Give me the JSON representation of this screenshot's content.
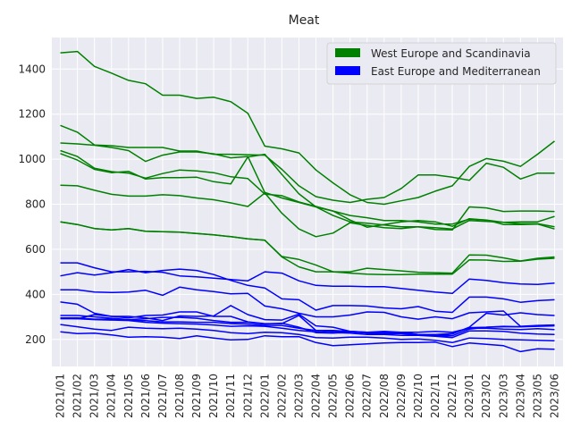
{
  "chart_data": {
    "type": "line",
    "title": "Meat",
    "xlabel": "",
    "ylabel": "",
    "x": [
      "2021/01",
      "2021/02",
      "2021/03",
      "2021/04",
      "2021/05",
      "2021/06",
      "2021/07",
      "2021/08",
      "2021/09",
      "2021/10",
      "2021/11",
      "2021/12",
      "2022/01",
      "2022/02",
      "2022/03",
      "2022/04",
      "2022/05",
      "2022/06",
      "2022/07",
      "2022/08",
      "2022/09",
      "2022/10",
      "2022/11",
      "2022/12",
      "2023/01",
      "2023/02",
      "2023/03",
      "2023/04",
      "2023/05",
      "2023/06"
    ],
    "ylim": [
      80,
      1540
    ],
    "yticks": [
      200,
      400,
      600,
      800,
      1000,
      1200,
      1400
    ],
    "grid": true,
    "legend_position": "top-right",
    "groups": [
      {
        "label": "West Europe and Scandinavia",
        "color": "#008000"
      },
      {
        "label": "East Europe and Mediterranean",
        "color": "#0000ff"
      }
    ],
    "series": [
      {
        "group": 0,
        "values": [
          1472,
          1478,
          1412,
          1382,
          1350,
          1335,
          1284,
          1284,
          1270,
          1275,
          1255,
          1204,
          1058,
          1046,
          1028,
          952,
          895,
          842,
          808,
          800,
          815,
          830,
          858,
          882,
          968,
          1003,
          991,
          968,
          1022,
          1080
        ]
      },
      {
        "group": 0,
        "values": [
          1150,
          1120,
          1063,
          1060,
          1052,
          1052,
          1052,
          1036,
          1036,
          1022,
          1022,
          1020,
          1018,
          955,
          882,
          834,
          818,
          808,
          822,
          830,
          870,
          930,
          930,
          920,
          906,
          982,
          964,
          912,
          938,
          938
        ]
      },
      {
        "group": 0,
        "values": [
          1072,
          1068,
          1062,
          1052,
          1038,
          990,
          1018,
          1032,
          1032,
          1024,
          1006,
          1012,
          852,
          828,
          808,
          788,
          770,
          730,
          698,
          710,
          722,
          728,
          722,
          702,
          736,
          730,
          710,
          710,
          712,
          690
        ]
      },
      {
        "group": 0,
        "values": [
          1038,
          1012,
          960,
          945,
          938,
          916,
          936,
          952,
          948,
          940,
          922,
          914,
          845,
          838,
          810,
          790,
          770,
          750,
          740,
          728,
          728,
          722,
          712,
          712,
          734,
          730,
          720,
          722,
          722,
          746
        ]
      },
      {
        "group": 0,
        "values": [
          1025,
          996,
          955,
          940,
          946,
          912,
          918,
          918,
          920,
          900,
          890,
          1010,
          1022,
          932,
          846,
          788,
          750,
          722,
          716,
          708,
          700,
          700,
          688,
          686,
          788,
          784,
          768,
          770,
          770,
          768
        ]
      },
      {
        "group": 0,
        "values": [
          884,
          882,
          862,
          844,
          836,
          836,
          842,
          838,
          828,
          820,
          806,
          790,
          850,
          760,
          690,
          656,
          672,
          718,
          706,
          696,
          692,
          700,
          696,
          690,
          728,
          724,
          720,
          714,
          714,
          700
        ]
      },
      {
        "group": 0,
        "values": [
          722,
          710,
          692,
          686,
          692,
          680,
          678,
          676,
          670,
          664,
          656,
          646,
          640,
          566,
          522,
          500,
          500,
          494,
          490,
          488,
          488,
          490,
          490,
          490,
          553,
          552,
          546,
          547,
          556,
          560
        ]
      },
      {
        "group": 0,
        "values": [
          722,
          710,
          692,
          686,
          692,
          680,
          678,
          676,
          670,
          664,
          656,
          646,
          640,
          568,
          555,
          530,
          500,
          500,
          516,
          510,
          504,
          498,
          496,
          494,
          575,
          574,
          562,
          548,
          560,
          566
        ]
      },
      {
        "group": 1,
        "values": [
          540,
          540,
          518,
          500,
          500,
          502,
          498,
          482,
          478,
          472,
          466,
          460,
          500,
          494,
          460,
          440,
          436,
          436,
          434,
          434,
          426,
          418,
          410,
          404,
          468,
          462,
          452,
          446,
          444,
          450
        ]
      },
      {
        "group": 1,
        "values": [
          482,
          496,
          486,
          496,
          510,
          496,
          506,
          512,
          506,
          488,
          462,
          440,
          428,
          380,
          376,
          330,
          350,
          350,
          348,
          340,
          336,
          346,
          325,
          320,
          388,
          388,
          380,
          365,
          372,
          376
        ]
      },
      {
        "group": 1,
        "values": [
          420,
          420,
          410,
          408,
          410,
          418,
          396,
          432,
          420,
          412,
          402,
          404,
          348,
          336,
          316,
          300,
          300,
          308,
          322,
          320,
          300,
          290,
          300,
          292,
          318,
          322,
          326,
          258,
          262,
          264
        ]
      },
      {
        "group": 1,
        "values": [
          366,
          356,
          316,
          302,
          296,
          306,
          308,
          322,
          322,
          302,
          302,
          278,
          270,
          270,
          306,
          240,
          240,
          236,
          232,
          228,
          232,
          232,
          236,
          232,
          250,
          250,
          246,
          244,
          248,
          244
        ]
      },
      {
        "group": 1,
        "values": [
          306,
          306,
          300,
          294,
          288,
          292,
          298,
          298,
          294,
          284,
          276,
          276,
          268,
          272,
          254,
          230,
          228,
          234,
          230,
          232,
          226,
          222,
          222,
          226,
          252,
          254,
          258,
          256,
          258,
          260
        ]
      },
      {
        "group": 1,
        "values": [
          295,
          296,
          290,
          290,
          285,
          283,
          278,
          278,
          276,
          276,
          270,
          268,
          262,
          262,
          250,
          240,
          236,
          234,
          228,
          226,
          226,
          222,
          216,
          216,
          246,
          254,
          256,
          256,
          260,
          264
        ]
      },
      {
        "group": 1,
        "values": [
          292,
          292,
          288,
          286,
          284,
          276,
          272,
          270,
          268,
          264,
          258,
          260,
          258,
          250,
          240,
          234,
          230,
          228,
          222,
          222,
          218,
          218,
          214,
          208,
          238,
          238,
          236,
          228,
          224,
          222
        ]
      },
      {
        "group": 1,
        "values": [
          296,
          292,
          310,
          302,
          302,
          296,
          284,
          304,
          302,
          304,
          350,
          310,
          288,
          286,
          312,
          260,
          254,
          236,
          232,
          236,
          232,
          222,
          216,
          224,
          254,
          316,
          308,
          318,
          310,
          306
        ]
      },
      {
        "group": 1,
        "values": [
          266,
          256,
          246,
          240,
          254,
          250,
          248,
          250,
          246,
          240,
          230,
          226,
          232,
          230,
          222,
          208,
          206,
          210,
          210,
          206,
          200,
          202,
          196,
          186,
          206,
          204,
          200,
          198,
          196,
          194
        ]
      },
      {
        "group": 1,
        "values": [
          234,
          226,
          228,
          220,
          210,
          212,
          210,
          204,
          216,
          206,
          198,
          200,
          216,
          212,
          212,
          186,
          172,
          176,
          180,
          184,
          186,
          186,
          188,
          168,
          184,
          178,
          172,
          146,
          158,
          156
        ]
      }
    ]
  }
}
